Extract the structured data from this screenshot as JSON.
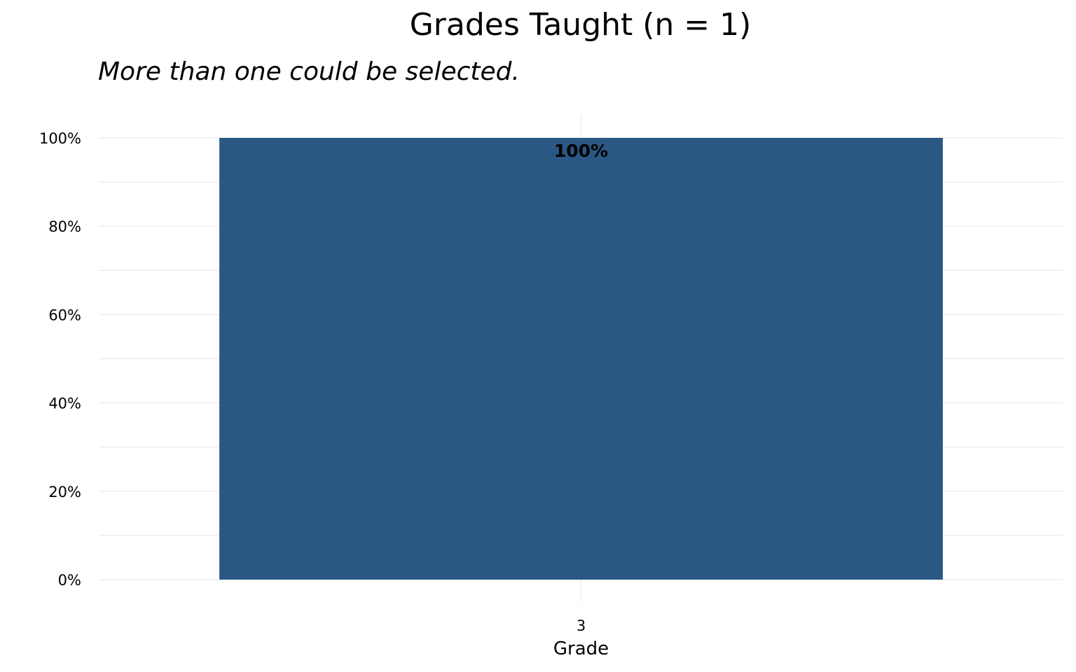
{
  "chart_data": {
    "type": "bar",
    "title": "Grades Taught (n = 1)",
    "subtitle": "More than one could be selected.",
    "xlabel": "Grade",
    "ylabel": "",
    "categories": [
      "3"
    ],
    "values": [
      100
    ],
    "data_labels": [
      "100%"
    ],
    "ylim": [
      0,
      100
    ],
    "y_ticks": [
      0,
      20,
      40,
      60,
      80,
      100
    ],
    "y_tick_labels": [
      "0%",
      "20%",
      "40%",
      "60%",
      "80%",
      "100%"
    ],
    "grid": true,
    "legend": "none",
    "colors": {
      "bar": "#2a5783",
      "grid": "#e6e6e6",
      "text": "#000000"
    }
  }
}
